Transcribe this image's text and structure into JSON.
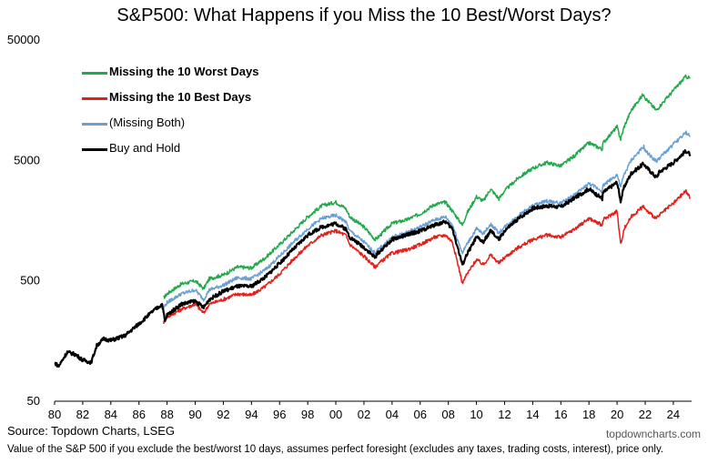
{
  "chart_data": {
    "type": "line",
    "title": "S&P500: What Happens if you Miss the 10 Best/Worst Days?",
    "y_scale": "log",
    "ylim": [
      50,
      50000
    ],
    "y_ticks": [
      "50",
      "500",
      "5000",
      "50000"
    ],
    "y_tick_values": [
      50,
      500,
      5000,
      50000
    ],
    "xlim": [
      1980,
      2025.3
    ],
    "x_ticks": [
      "80",
      "82",
      "84",
      "86",
      "88",
      "90",
      "92",
      "94",
      "96",
      "98",
      "00",
      "02",
      "04",
      "06",
      "08",
      "10",
      "12",
      "14",
      "16",
      "18",
      "20",
      "22",
      "24"
    ],
    "x_tick_values": [
      1980,
      1982,
      1984,
      1986,
      1988,
      1990,
      1992,
      1994,
      1996,
      1998,
      2000,
      2002,
      2004,
      2006,
      2008,
      2010,
      2012,
      2014,
      2016,
      2018,
      2020,
      2022,
      2024
    ],
    "legend_placement": "top-left",
    "grid": false,
    "series": [
      {
        "name": "Missing the 10 Worst Days",
        "color": "#21a84a",
        "bold": true,
        "points": [
          [
            1987.75,
            360
          ],
          [
            1988,
            390
          ],
          [
            1989,
            470
          ],
          [
            1990,
            500
          ],
          [
            1990.6,
            430
          ],
          [
            1991,
            520
          ],
          [
            1992,
            560
          ],
          [
            1993,
            650
          ],
          [
            1994,
            640
          ],
          [
            1995,
            780
          ],
          [
            1996,
            1000
          ],
          [
            1997,
            1300
          ],
          [
            1998,
            1700
          ],
          [
            1999,
            2100
          ],
          [
            2000,
            2250
          ],
          [
            2000.7,
            2000
          ],
          [
            2001,
            1700
          ],
          [
            2002,
            1400
          ],
          [
            2002.8,
            1100
          ],
          [
            2003,
            1150
          ],
          [
            2004,
            1500
          ],
          [
            2005,
            1600
          ],
          [
            2006,
            1800
          ],
          [
            2007,
            2150
          ],
          [
            2007.8,
            2250
          ],
          [
            2008.3,
            1900
          ],
          [
            2009,
            1450
          ],
          [
            2009.3,
            1800
          ],
          [
            2010,
            2500
          ],
          [
            2010.5,
            2300
          ],
          [
            2011,
            2900
          ],
          [
            2011.6,
            2400
          ],
          [
            2012,
            2800
          ],
          [
            2013,
            3600
          ],
          [
            2014,
            4300
          ],
          [
            2015,
            4800
          ],
          [
            2016,
            4500
          ],
          [
            2017,
            5500
          ],
          [
            2018,
            7000
          ],
          [
            2018.95,
            6200
          ],
          [
            2019,
            7000
          ],
          [
            2020,
            9500
          ],
          [
            2020.25,
            7500
          ],
          [
            2020.5,
            9500
          ],
          [
            2021,
            13000
          ],
          [
            2021.9,
            18000
          ],
          [
            2022,
            16500
          ],
          [
            2022.8,
            13000
          ],
          [
            2023,
            14000
          ],
          [
            2024,
            19000
          ],
          [
            2024.9,
            25000
          ],
          [
            2025.2,
            24000
          ]
        ]
      },
      {
        "name": "Missing the 10 Best Days",
        "color": "#e0201b",
        "bold": true,
        "points": [
          [
            1987.75,
            225
          ],
          [
            1988,
            250
          ],
          [
            1989,
            290
          ],
          [
            1990,
            320
          ],
          [
            1990.6,
            270
          ],
          [
            1991,
            320
          ],
          [
            1992,
            350
          ],
          [
            1993,
            390
          ],
          [
            1994,
            380
          ],
          [
            1995,
            450
          ],
          [
            1996,
            570
          ],
          [
            1997,
            760
          ],
          [
            1998,
            980
          ],
          [
            1999,
            1200
          ],
          [
            2000,
            1300
          ],
          [
            2000.7,
            1200
          ],
          [
            2001,
            1000
          ],
          [
            2002,
            800
          ],
          [
            2002.8,
            650
          ],
          [
            2003,
            690
          ],
          [
            2004,
            850
          ],
          [
            2005,
            900
          ],
          [
            2006,
            1000
          ],
          [
            2007,
            1150
          ],
          [
            2007.8,
            1200
          ],
          [
            2008.3,
            1050
          ],
          [
            2009,
            480
          ],
          [
            2009.3,
            560
          ],
          [
            2010,
            750
          ],
          [
            2010.5,
            680
          ],
          [
            2011,
            820
          ],
          [
            2011.6,
            700
          ],
          [
            2012,
            780
          ],
          [
            2013,
            950
          ],
          [
            2014,
            1100
          ],
          [
            2015,
            1200
          ],
          [
            2016,
            1150
          ],
          [
            2017,
            1350
          ],
          [
            2018,
            1650
          ],
          [
            2018.95,
            1450
          ],
          [
            2019,
            1600
          ],
          [
            2020,
            1900
          ],
          [
            2020.25,
            1000
          ],
          [
            2020.5,
            1350
          ],
          [
            2021,
            1700
          ],
          [
            2021.9,
            2100
          ],
          [
            2022,
            1950
          ],
          [
            2022.8,
            1650
          ],
          [
            2023,
            1750
          ],
          [
            2024,
            2200
          ],
          [
            2024.9,
            2800
          ],
          [
            2025.2,
            2400
          ]
        ]
      },
      {
        "name": "(Missing Both)",
        "color": "#6a9fd6",
        "bold": false,
        "points": [
          [
            1987.75,
            300
          ],
          [
            1988,
            330
          ],
          [
            1989,
            390
          ],
          [
            1990,
            420
          ],
          [
            1990.6,
            350
          ],
          [
            1991,
            420
          ],
          [
            1992,
            460
          ],
          [
            1993,
            530
          ],
          [
            1994,
            520
          ],
          [
            1995,
            620
          ],
          [
            1996,
            800
          ],
          [
            1997,
            1050
          ],
          [
            1998,
            1350
          ],
          [
            1999,
            1650
          ],
          [
            2000,
            1750
          ],
          [
            2000.7,
            1550
          ],
          [
            2001,
            1300
          ],
          [
            2002,
            1050
          ],
          [
            2002.8,
            850
          ],
          [
            2003,
            900
          ],
          [
            2004,
            1150
          ],
          [
            2005,
            1250
          ],
          [
            2006,
            1400
          ],
          [
            2007,
            1600
          ],
          [
            2007.8,
            1700
          ],
          [
            2008.3,
            1450
          ],
          [
            2009,
            850
          ],
          [
            2009.3,
            1000
          ],
          [
            2010,
            1350
          ],
          [
            2010.5,
            1230
          ],
          [
            2011,
            1480
          ],
          [
            2011.6,
            1250
          ],
          [
            2012,
            1400
          ],
          [
            2013,
            1750
          ],
          [
            2014,
            2100
          ],
          [
            2015,
            2300
          ],
          [
            2016,
            2200
          ],
          [
            2017,
            2600
          ],
          [
            2018,
            3200
          ],
          [
            2018.95,
            2800
          ],
          [
            2019,
            3100
          ],
          [
            2020,
            3800
          ],
          [
            2020.25,
            3000
          ],
          [
            2020.5,
            3800
          ],
          [
            2021,
            5000
          ],
          [
            2021.9,
            6500
          ],
          [
            2022,
            6000
          ],
          [
            2022.8,
            4900
          ],
          [
            2023,
            5200
          ],
          [
            2024,
            6800
          ],
          [
            2024.9,
            8500
          ],
          [
            2025.2,
            8000
          ]
        ]
      },
      {
        "name": "Buy and Hold",
        "color": "#000000",
        "bold": false,
        "points": [
          [
            1980,
            104
          ],
          [
            1980.3,
            98
          ],
          [
            1980.9,
            128
          ],
          [
            1981.5,
            122
          ],
          [
            1982,
            110
          ],
          [
            1982.6,
            105
          ],
          [
            1983,
            145
          ],
          [
            1983.5,
            165
          ],
          [
            1984,
            160
          ],
          [
            1985,
            175
          ],
          [
            1986,
            220
          ],
          [
            1987,
            280
          ],
          [
            1987.65,
            320
          ],
          [
            1987.85,
            230
          ],
          [
            1988,
            260
          ],
          [
            1989,
            320
          ],
          [
            1990,
            340
          ],
          [
            1990.6,
            300
          ],
          [
            1991,
            350
          ],
          [
            1992,
            410
          ],
          [
            1993,
            450
          ],
          [
            1994,
            450
          ],
          [
            1995,
            540
          ],
          [
            1996,
            700
          ],
          [
            1997,
            920
          ],
          [
            1998,
            1200
          ],
          [
            1999,
            1400
          ],
          [
            2000,
            1500
          ],
          [
            2000.7,
            1350
          ],
          [
            2001,
            1150
          ],
          [
            2002,
            950
          ],
          [
            2002.8,
            780
          ],
          [
            2003,
            850
          ],
          [
            2004,
            1100
          ],
          [
            2005,
            1200
          ],
          [
            2006,
            1300
          ],
          [
            2007,
            1450
          ],
          [
            2007.8,
            1550
          ],
          [
            2008.3,
            1350
          ],
          [
            2009,
            680
          ],
          [
            2009.3,
            820
          ],
          [
            2010,
            1150
          ],
          [
            2010.5,
            1050
          ],
          [
            2011,
            1300
          ],
          [
            2011.6,
            1100
          ],
          [
            2012,
            1300
          ],
          [
            2013,
            1650
          ],
          [
            2014,
            2000
          ],
          [
            2015,
            2100
          ],
          [
            2016,
            2050
          ],
          [
            2017,
            2450
          ],
          [
            2018,
            2900
          ],
          [
            2018.95,
            2400
          ],
          [
            2019,
            2700
          ],
          [
            2020,
            3300
          ],
          [
            2020.25,
            2300
          ],
          [
            2020.5,
            3000
          ],
          [
            2021,
            3900
          ],
          [
            2021.9,
            4700
          ],
          [
            2022,
            4500
          ],
          [
            2022.8,
            3600
          ],
          [
            2023,
            4000
          ],
          [
            2024,
            4800
          ],
          [
            2024.9,
            6000
          ],
          [
            2025.2,
            5600
          ]
        ]
      }
    ]
  },
  "source": "Source: Topdown Charts, LSEG",
  "watermark": "topdowncharts.com",
  "footnote": "Value of the S&P 500 if you exclude the best/worst 10 days, assumes perfect foresight (excludes any taxes, trading costs, interest), price only."
}
